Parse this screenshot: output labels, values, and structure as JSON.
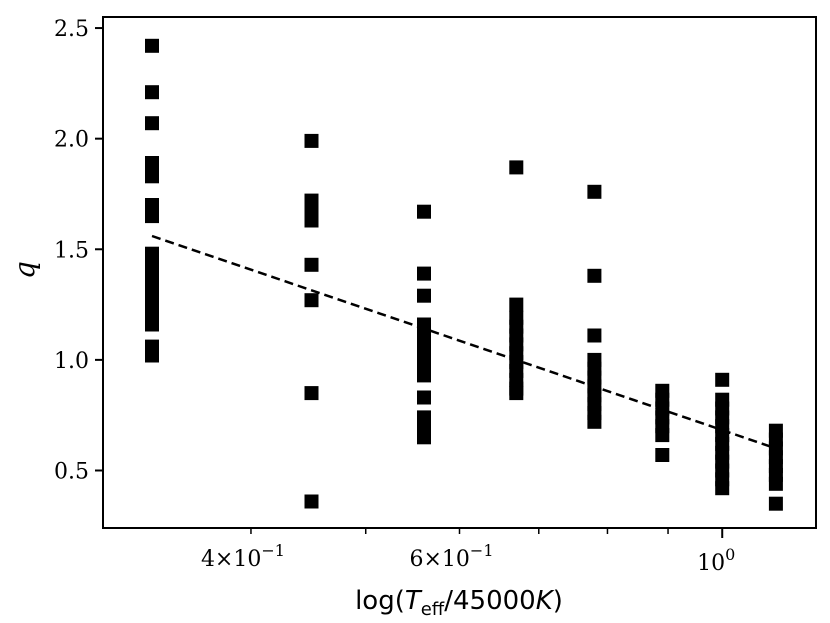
{
  "chart_data": {
    "type": "scatter",
    "xscale": "log",
    "xlim": [
      0.3,
      1.2
    ],
    "ylim": [
      0.24,
      2.55
    ],
    "xlabel": {
      "prefix": "log(",
      "var": "T",
      "sub": "eff",
      "mid": "/45000",
      "unit": "K",
      "suffix": ")"
    },
    "ylabel": "q",
    "yticks": [
      {
        "value": 0.5,
        "label": "0.5"
      },
      {
        "value": 1.0,
        "label": "1.0"
      },
      {
        "value": 1.5,
        "label": "1.5"
      },
      {
        "value": 2.0,
        "label": "2.0"
      },
      {
        "value": 2.5,
        "label": "2.5"
      }
    ],
    "xticks_major": [
      {
        "value": 1.0,
        "base": "10",
        "exp": "0"
      }
    ],
    "xticks_minor": [
      {
        "value": 0.4,
        "mant": "4",
        "base": "10",
        "exp": "−1",
        "labeled": true
      },
      {
        "value": 0.5,
        "labeled": false
      },
      {
        "value": 0.6,
        "mant": "6",
        "base": "10",
        "exp": "−1",
        "labeled": true
      },
      {
        "value": 0.7,
        "labeled": false
      },
      {
        "value": 0.8,
        "labeled": false
      },
      {
        "value": 0.9,
        "labeled": false
      }
    ],
    "marker_color": "#000000",
    "points": [
      [
        0.33,
        2.42
      ],
      [
        0.33,
        2.21
      ],
      [
        0.33,
        2.07
      ],
      [
        0.33,
        1.89
      ],
      [
        0.33,
        1.86
      ],
      [
        0.33,
        1.83
      ],
      [
        0.33,
        1.7
      ],
      [
        0.33,
        1.67
      ],
      [
        0.33,
        1.65
      ],
      [
        0.33,
        1.48
      ],
      [
        0.33,
        1.44
      ],
      [
        0.33,
        1.38
      ],
      [
        0.33,
        1.35
      ],
      [
        0.33,
        1.32
      ],
      [
        0.33,
        1.28
      ],
      [
        0.33,
        1.22
      ],
      [
        0.33,
        1.16
      ],
      [
        0.33,
        1.06
      ],
      [
        0.33,
        1.02
      ],
      [
        0.45,
        1.99
      ],
      [
        0.45,
        1.72
      ],
      [
        0.45,
        1.69
      ],
      [
        0.45,
        1.66
      ],
      [
        0.45,
        1.63
      ],
      [
        0.45,
        1.43
      ],
      [
        0.45,
        1.27
      ],
      [
        0.45,
        0.85
      ],
      [
        0.45,
        0.36
      ],
      [
        0.56,
        1.67
      ],
      [
        0.56,
        1.39
      ],
      [
        0.56,
        1.29
      ],
      [
        0.56,
        1.16
      ],
      [
        0.56,
        1.12
      ],
      [
        0.56,
        1.08
      ],
      [
        0.56,
        1.04
      ],
      [
        0.56,
        1.0
      ],
      [
        0.56,
        0.97
      ],
      [
        0.56,
        0.93
      ],
      [
        0.56,
        0.83
      ],
      [
        0.56,
        0.74
      ],
      [
        0.56,
        0.68
      ],
      [
        0.56,
        0.65
      ],
      [
        0.67,
        1.87
      ],
      [
        0.67,
        1.25
      ],
      [
        0.67,
        1.19
      ],
      [
        0.67,
        1.15
      ],
      [
        0.67,
        1.11
      ],
      [
        0.67,
        1.07
      ],
      [
        0.67,
        1.03
      ],
      [
        0.67,
        0.99
      ],
      [
        0.67,
        0.95
      ],
      [
        0.67,
        0.91
      ],
      [
        0.67,
        0.87
      ],
      [
        0.67,
        0.85
      ],
      [
        0.78,
        1.76
      ],
      [
        0.78,
        1.38
      ],
      [
        0.78,
        1.11
      ],
      [
        0.78,
        1.0
      ],
      [
        0.78,
        0.96
      ],
      [
        0.78,
        0.92
      ],
      [
        0.78,
        0.88
      ],
      [
        0.78,
        0.84
      ],
      [
        0.78,
        0.8
      ],
      [
        0.78,
        0.76
      ],
      [
        0.78,
        0.72
      ],
      [
        0.89,
        0.86
      ],
      [
        0.89,
        0.82
      ],
      [
        0.89,
        0.78
      ],
      [
        0.89,
        0.74
      ],
      [
        0.89,
        0.7
      ],
      [
        0.89,
        0.66
      ],
      [
        0.89,
        0.57
      ],
      [
        1.0,
        0.91
      ],
      [
        1.0,
        0.82
      ],
      [
        1.0,
        0.78
      ],
      [
        1.0,
        0.74
      ],
      [
        1.0,
        0.7
      ],
      [
        1.0,
        0.66
      ],
      [
        1.0,
        0.62
      ],
      [
        1.0,
        0.58
      ],
      [
        1.0,
        0.54
      ],
      [
        1.0,
        0.5
      ],
      [
        1.0,
        0.46
      ],
      [
        1.0,
        0.42
      ],
      [
        1.11,
        0.68
      ],
      [
        1.11,
        0.64
      ],
      [
        1.11,
        0.6
      ],
      [
        1.11,
        0.56
      ],
      [
        1.11,
        0.52
      ],
      [
        1.11,
        0.48
      ],
      [
        1.11,
        0.44
      ],
      [
        1.11,
        0.35
      ]
    ],
    "fit_line": {
      "style": "dashed",
      "points": [
        [
          0.33,
          1.56
        ],
        [
          1.11,
          0.6
        ]
      ]
    }
  }
}
